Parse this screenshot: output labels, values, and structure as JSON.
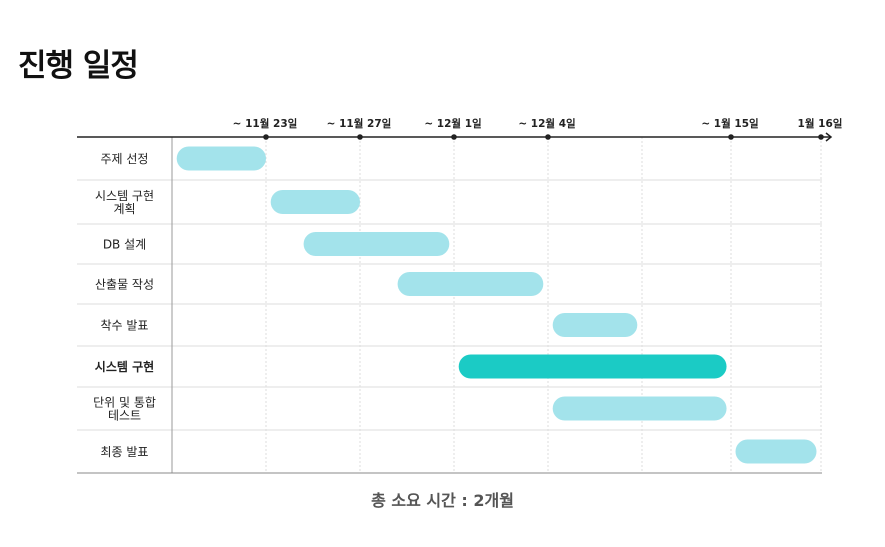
{
  "title": "진행 일정",
  "summary": "총 소요 시간 : 2개월",
  "colors": {
    "bar": "#a3e3eb",
    "highlight_bar": "#1bcbc5",
    "axis": "#222222",
    "grid": "#dddddd",
    "row_divider": "#dddddd"
  },
  "chart_data": {
    "type": "gantt",
    "title": "진행 일정",
    "x_ticks": [
      "~ 11월 23일",
      "~ 11월 27일",
      "~ 12월 1일",
      "~ 12월 4일",
      "~ 1월 15일",
      "1월 16일"
    ],
    "tasks": [
      {
        "label": [
          "주제 선정"
        ],
        "start": 0.05,
        "end": 1.0,
        "highlight": false
      },
      {
        "label": [
          "시스템 구현",
          "계획"
        ],
        "start": 1.05,
        "end": 2.0,
        "highlight": false
      },
      {
        "label": [
          "DB 설계"
        ],
        "start": 1.4,
        "end": 2.95,
        "highlight": false
      },
      {
        "label": [
          "산출물 작성"
        ],
        "start": 2.4,
        "end": 3.95,
        "highlight": false
      },
      {
        "label": [
          "착수 발표"
        ],
        "start": 4.05,
        "end": 4.95,
        "highlight": false
      },
      {
        "label": [
          "시스템 구현"
        ],
        "start": 3.05,
        "end": 5.95,
        "highlight": true
      },
      {
        "label": [
          "단위 및 통합",
          "테스트"
        ],
        "start": 4.05,
        "end": 5.95,
        "highlight": false
      },
      {
        "label": [
          "최종 발표"
        ],
        "start": 6.05,
        "end": 6.95,
        "highlight": false
      }
    ]
  }
}
